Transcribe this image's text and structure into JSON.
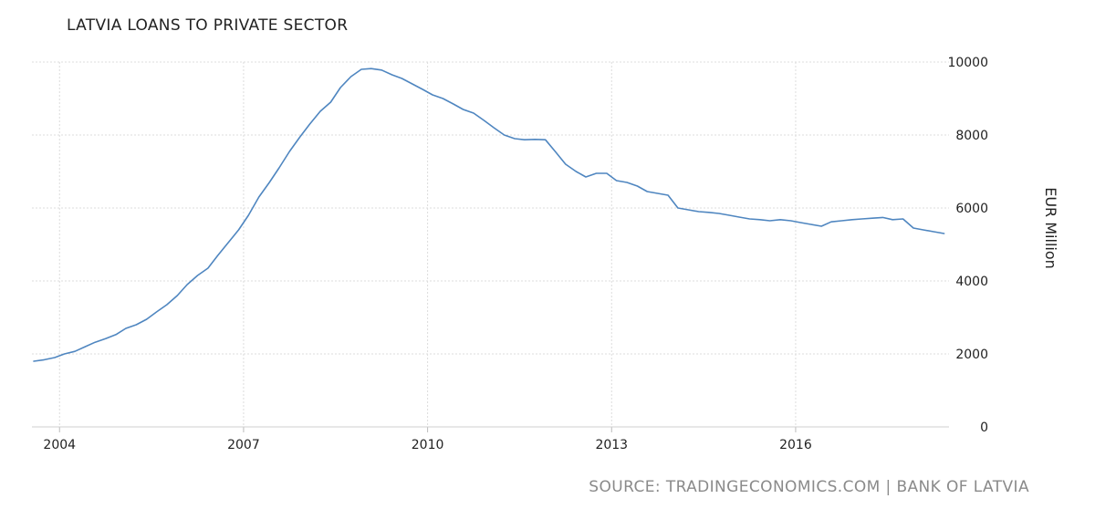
{
  "chart_data": {
    "type": "line",
    "title": "LATVIA LOANS TO PRIVATE SECTOR",
    "ylabel": "EUR Million",
    "xlabel": "",
    "x_ticks": [
      "2004",
      "2007",
      "2010",
      "2013",
      "2016"
    ],
    "y_ticks": [
      "0",
      "2000",
      "4000",
      "6000",
      "8000",
      "10000"
    ],
    "xlim": [
      2003.55,
      2018.5
    ],
    "ylim": [
      0,
      10000
    ],
    "grid": true,
    "line_color": "#4f86c0",
    "series": [
      {
        "values": [
          [
            2003.58,
            1800
          ],
          [
            2003.75,
            1840
          ],
          [
            2003.92,
            1900
          ],
          [
            2004.08,
            2000
          ],
          [
            2004.25,
            2070
          ],
          [
            2004.42,
            2200
          ],
          [
            2004.58,
            2320
          ],
          [
            2004.75,
            2420
          ],
          [
            2004.92,
            2530
          ],
          [
            2005.08,
            2700
          ],
          [
            2005.25,
            2800
          ],
          [
            2005.42,
            2950
          ],
          [
            2005.58,
            3150
          ],
          [
            2005.75,
            3350
          ],
          [
            2005.92,
            3600
          ],
          [
            2006.08,
            3900
          ],
          [
            2006.25,
            4150
          ],
          [
            2006.42,
            4350
          ],
          [
            2006.58,
            4700
          ],
          [
            2006.75,
            5050
          ],
          [
            2006.92,
            5400
          ],
          [
            2007.08,
            5800
          ],
          [
            2007.25,
            6300
          ],
          [
            2007.42,
            6700
          ],
          [
            2007.58,
            7100
          ],
          [
            2007.75,
            7550
          ],
          [
            2007.92,
            7950
          ],
          [
            2008.08,
            8300
          ],
          [
            2008.25,
            8650
          ],
          [
            2008.42,
            8900
          ],
          [
            2008.58,
            9300
          ],
          [
            2008.75,
            9600
          ],
          [
            2008.92,
            9800
          ],
          [
            2009.08,
            9820
          ],
          [
            2009.25,
            9780
          ],
          [
            2009.42,
            9650
          ],
          [
            2009.58,
            9550
          ],
          [
            2009.75,
            9400
          ],
          [
            2009.92,
            9250
          ],
          [
            2010.08,
            9100
          ],
          [
            2010.25,
            9000
          ],
          [
            2010.42,
            8850
          ],
          [
            2010.58,
            8700
          ],
          [
            2010.75,
            8600
          ],
          [
            2010.92,
            8400
          ],
          [
            2011.08,
            8200
          ],
          [
            2011.25,
            8000
          ],
          [
            2011.42,
            7900
          ],
          [
            2011.58,
            7870
          ],
          [
            2011.75,
            7880
          ],
          [
            2011.92,
            7870
          ],
          [
            2012.08,
            7550
          ],
          [
            2012.25,
            7200
          ],
          [
            2012.42,
            7000
          ],
          [
            2012.58,
            6850
          ],
          [
            2012.75,
            6950
          ],
          [
            2012.92,
            6950
          ],
          [
            2013.08,
            6750
          ],
          [
            2013.25,
            6700
          ],
          [
            2013.42,
            6600
          ],
          [
            2013.58,
            6450
          ],
          [
            2013.75,
            6400
          ],
          [
            2013.92,
            6350
          ],
          [
            2014.08,
            6000
          ],
          [
            2014.25,
            5950
          ],
          [
            2014.42,
            5900
          ],
          [
            2014.58,
            5880
          ],
          [
            2014.75,
            5850
          ],
          [
            2014.92,
            5800
          ],
          [
            2015.08,
            5750
          ],
          [
            2015.25,
            5700
          ],
          [
            2015.42,
            5680
          ],
          [
            2015.58,
            5650
          ],
          [
            2015.75,
            5680
          ],
          [
            2015.92,
            5650
          ],
          [
            2016.08,
            5600
          ],
          [
            2016.25,
            5550
          ],
          [
            2016.42,
            5500
          ],
          [
            2016.58,
            5620
          ],
          [
            2016.75,
            5650
          ],
          [
            2016.92,
            5680
          ],
          [
            2017.08,
            5700
          ],
          [
            2017.25,
            5720
          ],
          [
            2017.42,
            5740
          ],
          [
            2017.58,
            5680
          ],
          [
            2017.75,
            5700
          ],
          [
            2017.92,
            5450
          ],
          [
            2018.08,
            5400
          ],
          [
            2018.25,
            5350
          ],
          [
            2018.42,
            5300
          ]
        ]
      }
    ]
  },
  "source": "SOURCE: TRADINGECONOMICS.COM | BANK OF LATVIA"
}
